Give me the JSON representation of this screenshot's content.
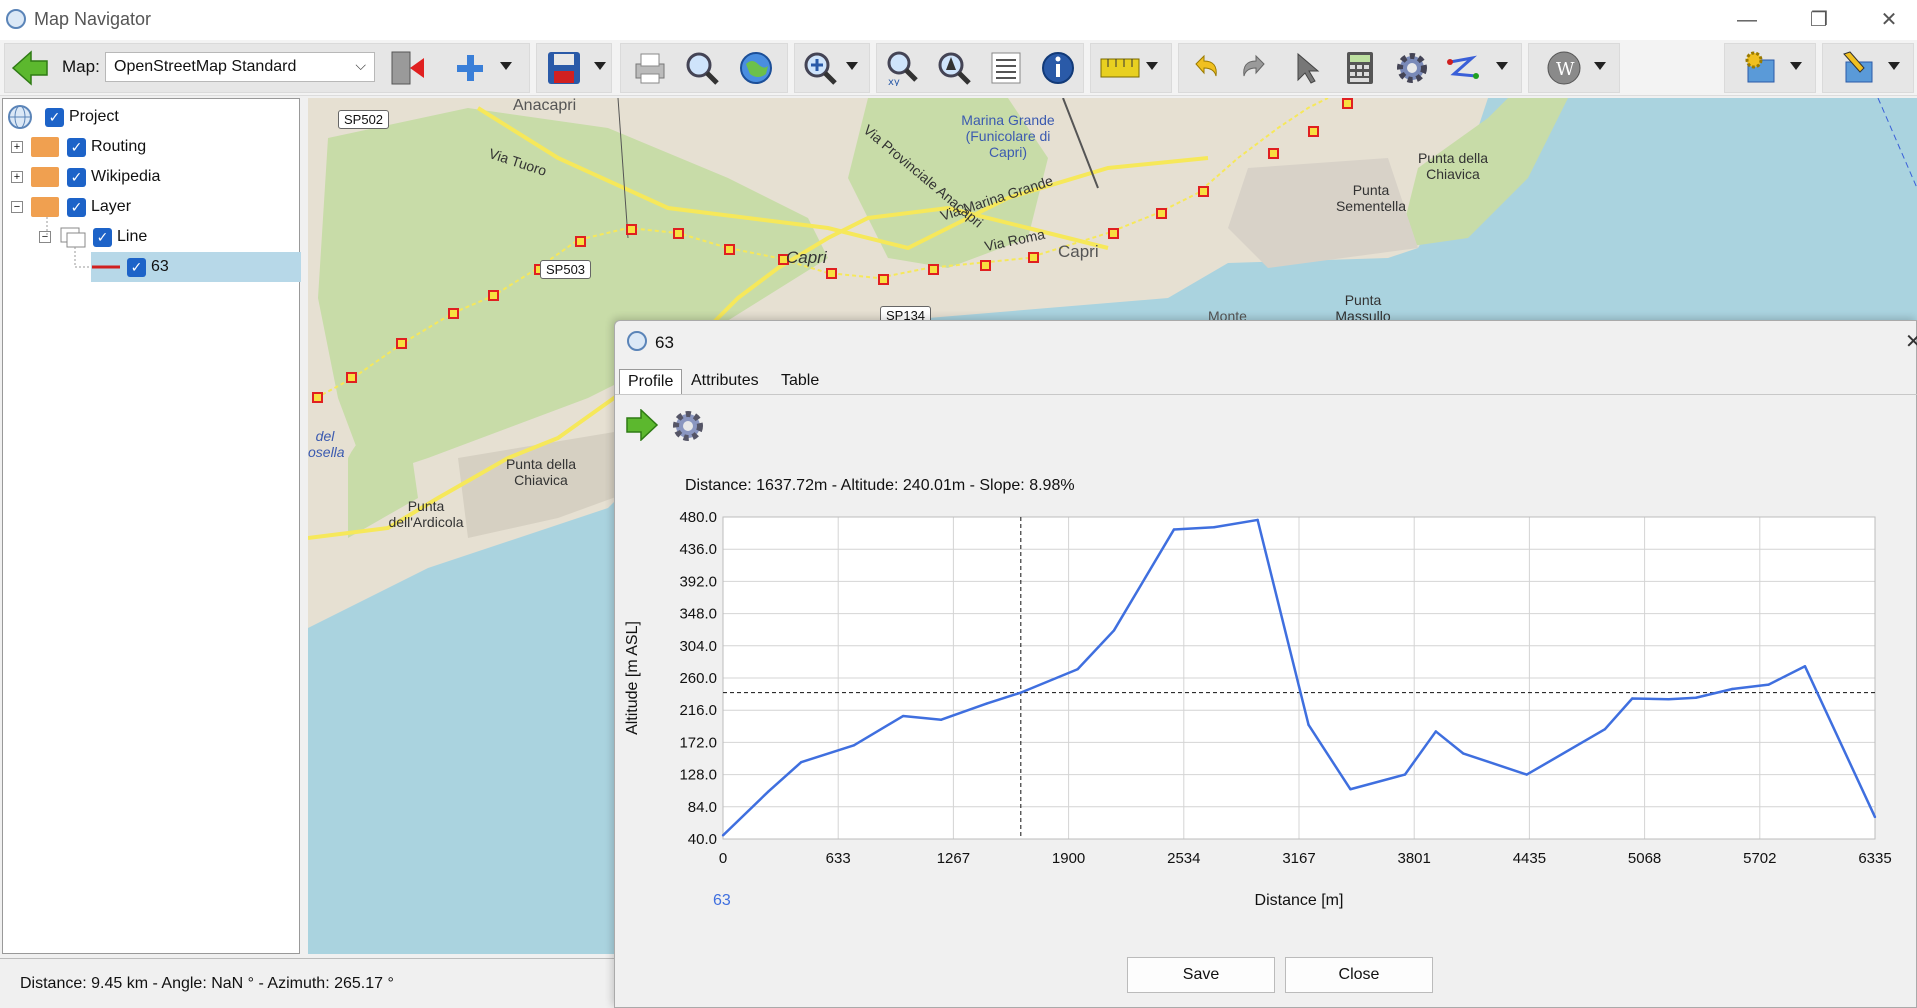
{
  "window": {
    "title": "Map Navigator",
    "controls": [
      "—",
      "❐",
      "✕"
    ]
  },
  "toolbar": {
    "map_label": "Map:",
    "map_selected": "OpenStreetMap Standard"
  },
  "tree": {
    "items": [
      {
        "label": "Project"
      },
      {
        "label": "Routing"
      },
      {
        "label": "Wikipedia"
      },
      {
        "label": "Layer"
      },
      {
        "label": "Line"
      },
      {
        "label": "63"
      }
    ]
  },
  "map": {
    "labels": [
      "Anacapri",
      "Marina Grande (Funicolare di Capri)",
      "Via Tuoro",
      "Via Provinciale Anacapri",
      "Via Marina Grande",
      "Via Roma",
      "Capri",
      "Capri",
      "Punta della Chiavica",
      "Punta Sementella",
      "Punta Massullo",
      "Monte",
      "Punta della Chiavica",
      "Punta dell'Ardicola",
      "del osella"
    ],
    "road_signs": [
      "SP502",
      "SP503",
      "SP134"
    ],
    "colors": {
      "sea": "#aad3df",
      "land": "#e8e2d6",
      "green": "#c8dca8",
      "route": "#f6e85a",
      "marker": "#e02020"
    }
  },
  "status": {
    "text": "Distance: 9.45 km - Angle: NaN ° - Azimuth: 265.17 °"
  },
  "dialog": {
    "title": "63",
    "close": "✕",
    "tabs": [
      "Profile",
      "Attributes",
      "Table"
    ],
    "active_tab": "Profile",
    "readout": "Distance: 1637.72m - Altitude: 240.01m - Slope: 8.98%",
    "buttons": {
      "save": "Save",
      "close": "Close"
    }
  },
  "chart_data": {
    "type": "line",
    "xlabel": "Distance [m]",
    "ylabel": "Altitude [m ASL]",
    "xlim": [
      0,
      6335
    ],
    "ylim": [
      40,
      480
    ],
    "x_ticks": [
      "0",
      "633",
      "1267",
      "1900",
      "2534",
      "3167",
      "3801",
      "4435",
      "5068",
      "5702",
      "6335"
    ],
    "y_ticks": [
      "480.0",
      "436.0",
      "392.0",
      "348.0",
      "304.0",
      "260.0",
      "216.0",
      "172.0",
      "128.0",
      "84.0",
      "40.0"
    ],
    "grid": true,
    "legend_placement": "bottom-left",
    "series": [
      {
        "name": "63",
        "color": "#3f6fdf",
        "x": [
          0,
          250,
          430,
          720,
          990,
          1200,
          1450,
          1637.72,
          1950,
          2150,
          2480,
          2700,
          2940,
          3220,
          3450,
          3750,
          3920,
          4070,
          4420,
          4850,
          5000,
          5200,
          5350,
          5550,
          5750,
          5950,
          6335
        ],
        "y": [
          45,
          105,
          145,
          168,
          208,
          203,
          225,
          240,
          272,
          325,
          463,
          466,
          476,
          196,
          108,
          128,
          187,
          157,
          128,
          190,
          232,
          231,
          233,
          245,
          251,
          276,
          70
        ]
      }
    ],
    "crosshair": {
      "x": 1637.72,
      "y": 240.01
    }
  }
}
